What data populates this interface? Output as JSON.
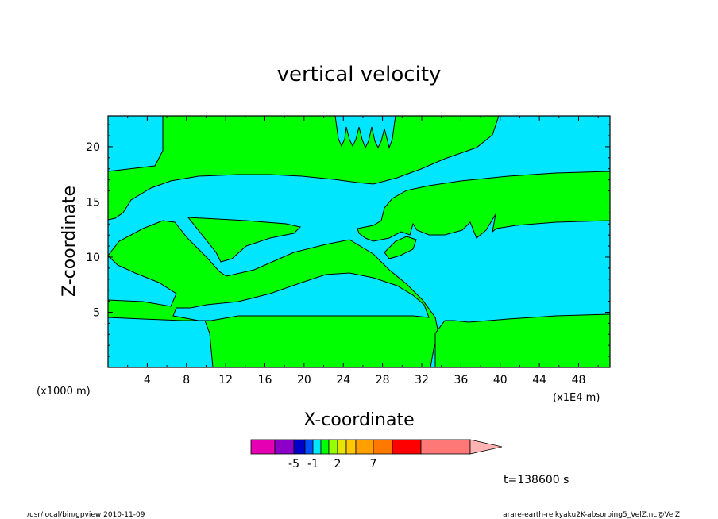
{
  "chart_data": {
    "type": "contour",
    "title": "vertical velocity",
    "xlabel": "X-coordinate",
    "ylabel": "Z-coordinate",
    "x_unit_left": "(x1000 m)",
    "x_unit_right": "(x1E4 m)",
    "xlim": [
      0,
      51.2
    ],
    "ylim": [
      0,
      22.8
    ],
    "xticks": [
      "4",
      "8",
      "12",
      "16",
      "20",
      "24",
      "28",
      "32",
      "36",
      "40",
      "44",
      "48"
    ],
    "xtick_values": [
      4,
      8,
      12,
      16,
      20,
      24,
      28,
      32,
      36,
      40,
      44,
      48
    ],
    "yticks": [
      "5",
      "10",
      "15",
      "20"
    ],
    "ytick_values": [
      5,
      10,
      15,
      20
    ],
    "colors": {
      "negative_region": "#00e6ff",
      "positive_region": "#00ff00",
      "contour_line": "#000000"
    },
    "colorbar": {
      "colors": [
        "#e600b4",
        "#8c00c8",
        "#0000c8",
        "#0050ff",
        "#00e6ff",
        "#00ff00",
        "#96ff00",
        "#e6e600",
        "#ffc800",
        "#ffa000",
        "#ff7800",
        "#ff0000",
        "#ff7878",
        "#ffb4b4"
      ],
      "labels": [
        "-5",
        "-1",
        "2",
        "7"
      ],
      "label_segment_index": [
        1,
        3,
        6,
        9
      ]
    },
    "time_label": "t=138600 s"
  },
  "footer": {
    "left": "/usr/local/bin/gpview  2010-11-09",
    "right": "arare-earth-reikyaku2K-absorbing5_VelZ.nc@VelZ"
  }
}
